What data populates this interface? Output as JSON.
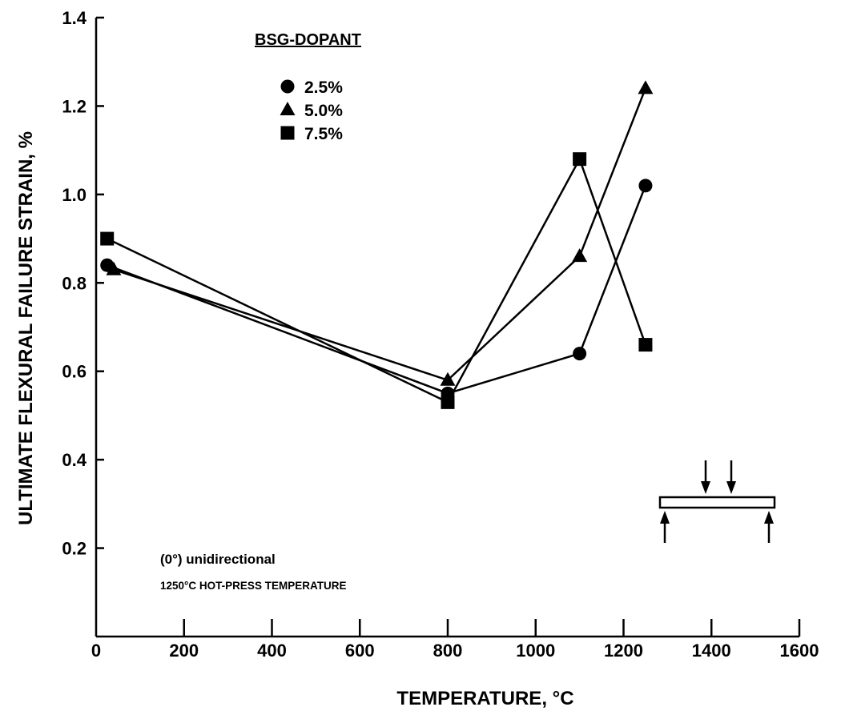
{
  "chart_data": {
    "type": "line",
    "xlabel": "TEMPERATURE, °C",
    "ylabel": "ULTIMATE FLEXURAL FAILURE STRAIN, %",
    "xlim": [
      0,
      1600
    ],
    "ylim": [
      0,
      1.4
    ],
    "x_ticks": [
      0,
      200,
      400,
      600,
      800,
      1000,
      1200,
      1400,
      1600
    ],
    "y_ticks": [
      0.2,
      0.4,
      0.6,
      0.8,
      1.0,
      1.2,
      1.4
    ],
    "x_tick_labels": [
      "0",
      "200",
      "400",
      "600",
      "800",
      "1000",
      "1200",
      "1400",
      "1600"
    ],
    "y_tick_labels": [
      "0.2",
      "0.4",
      "0.6",
      "0.8",
      "1.0",
      "1.2",
      "1.4"
    ],
    "grid": false,
    "legend_title": "BSG-DOPANT",
    "legend_position": "top-left",
    "series": [
      {
        "name": "2.5%",
        "marker": "circle",
        "points": [
          [
            25,
            0.84
          ],
          [
            800,
            0.55
          ],
          [
            1100,
            0.64
          ],
          [
            1250,
            1.02
          ]
        ]
      },
      {
        "name": "5.0%",
        "marker": "triangle",
        "points": [
          [
            40,
            0.83
          ],
          [
            800,
            0.58
          ],
          [
            1100,
            0.86
          ],
          [
            1250,
            1.24
          ]
        ]
      },
      {
        "name": "7.5%",
        "marker": "square",
        "points": [
          [
            25,
            0.9
          ],
          [
            800,
            0.53
          ],
          [
            1100,
            1.08
          ],
          [
            1250,
            0.66
          ]
        ]
      }
    ],
    "annotations": [
      "(0°) unidirectional",
      "1250°C HOT-PRESS TEMPERATURE"
    ],
    "inset": "four-point-bend-specimen-diagram"
  },
  "colors": {
    "ink": "#000000",
    "background": "#ffffff"
  }
}
